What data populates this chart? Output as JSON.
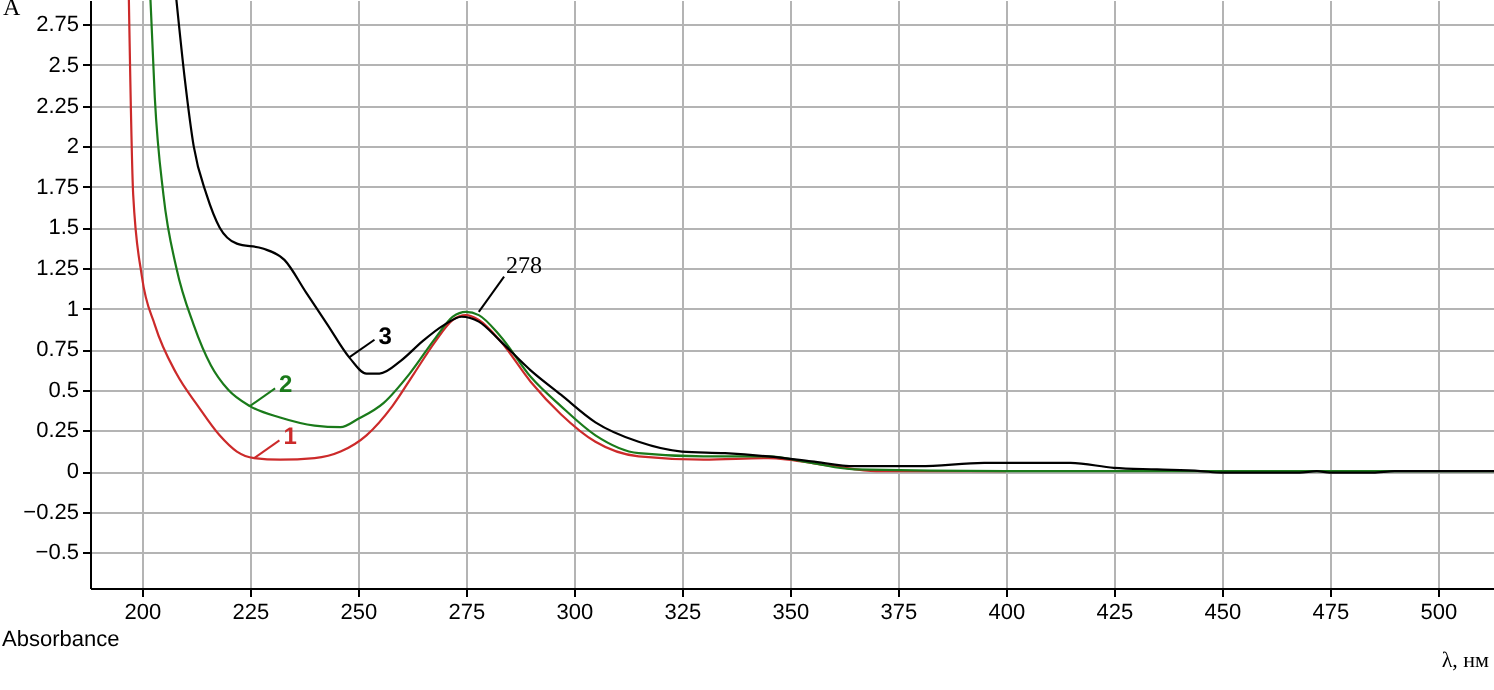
{
  "chart_data": {
    "type": "line",
    "ylabel": "A",
    "xlabel": "λ, нм",
    "annotations": [
      "Absorbance",
      {
        "text": "278",
        "x": 278,
        "y": 0.98
      }
    ],
    "xlim": [
      188,
      513
    ],
    "ylim": [
      -0.72,
      2.9
    ],
    "xticks": [
      200,
      225,
      250,
      275,
      300,
      325,
      350,
      375,
      400,
      425,
      450,
      475,
      500
    ],
    "yticks": [
      -0.5,
      -0.25,
      0,
      0.25,
      0.5,
      0.75,
      1,
      1.25,
      1.5,
      1.75,
      2,
      2.25,
      2.5,
      2.75
    ],
    "grid": true,
    "legend": "bottom left",
    "marker": "none",
    "line_style": "solid",
    "series": [
      {
        "name": "1",
        "color": "#cc2a2a",
        "x": [
          197,
          198,
          200,
          203,
          208,
          213,
          218,
          222,
          226,
          232,
          240,
          246,
          252,
          258,
          263,
          268,
          272,
          275,
          278,
          283,
          290,
          297,
          305,
          315,
          330,
          345,
          360,
          370,
          400
        ],
        "values": [
          2.9,
          1.7,
          1.2,
          0.9,
          0.6,
          0.4,
          0.22,
          0.12,
          0.08,
          0.07,
          0.08,
          0.12,
          0.22,
          0.4,
          0.6,
          0.8,
          0.93,
          0.96,
          0.93,
          0.8,
          0.55,
          0.35,
          0.18,
          0.09,
          0.07,
          0.08,
          0.03,
          0.0,
          0.0
        ]
      },
      {
        "name": "2",
        "color": "#1a7a1a",
        "x": [
          202,
          203,
          205,
          208,
          212,
          216,
          220,
          225,
          232,
          240,
          246,
          250,
          256,
          262,
          268,
          272,
          275,
          278,
          283,
          290,
          297,
          305,
          315,
          330,
          345,
          355,
          365,
          400,
          440,
          513
        ],
        "values": [
          2.9,
          2.3,
          1.7,
          1.25,
          0.9,
          0.65,
          0.5,
          0.4,
          0.33,
          0.28,
          0.27,
          0.32,
          0.42,
          0.6,
          0.82,
          0.95,
          0.98,
          0.96,
          0.83,
          0.58,
          0.4,
          0.22,
          0.11,
          0.09,
          0.09,
          0.05,
          0.01,
          0.0,
          0.0,
          0.0
        ]
      },
      {
        "name": "3",
        "color": "#000000",
        "x": [
          208,
          210,
          212,
          215,
          218,
          222,
          228,
          233,
          238,
          243,
          248,
          252,
          255,
          260,
          265,
          270,
          274,
          278,
          283,
          290,
          297,
          305,
          315,
          325,
          335,
          345,
          355,
          365,
          380,
          395,
          415,
          425,
          435,
          445,
          450,
          468,
          472,
          475,
          485,
          490,
          513
        ],
        "values": [
          2.9,
          2.4,
          2.0,
          1.7,
          1.5,
          1.4,
          1.37,
          1.3,
          1.1,
          0.9,
          0.7,
          0.6,
          0.6,
          0.68,
          0.8,
          0.9,
          0.95,
          0.92,
          0.8,
          0.62,
          0.47,
          0.3,
          0.18,
          0.12,
          0.11,
          0.09,
          0.06,
          0.03,
          0.03,
          0.05,
          0.05,
          0.02,
          0.01,
          0.0,
          -0.01,
          -0.01,
          0.0,
          -0.01,
          -0.01,
          0.0,
          0.0
        ]
      }
    ]
  }
}
